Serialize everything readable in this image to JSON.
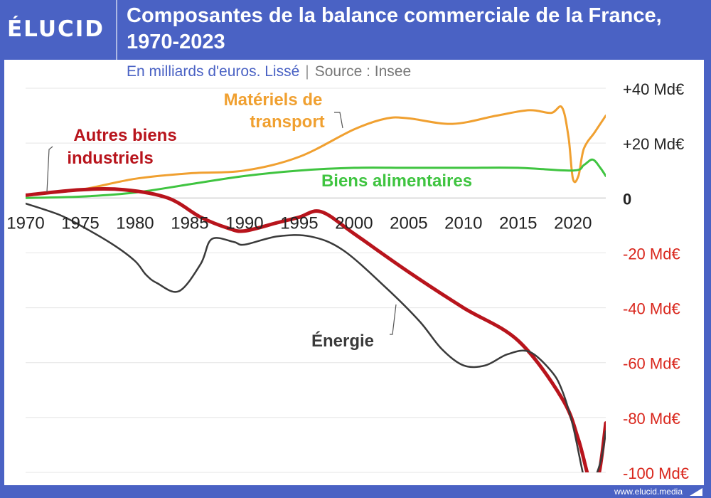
{
  "header": {
    "logo_text": "ÉLUCID",
    "title": "Composantes de la balance commerciale de la France, 1970-2023",
    "subtitle": "En milliards d'euros. Lissé",
    "subtitle_separator": "|",
    "source": "Source : Insee"
  },
  "footer": {
    "url": "www.elucid.media"
  },
  "chart_data": {
    "type": "line",
    "title": "Composantes de la balance commerciale de la France, 1970-2023",
    "subtitle": "En milliards d'euros. Lissé | Source : Insee",
    "xlabel": "",
    "ylabel": "",
    "xlim": [
      1970,
      2023
    ],
    "ylim": [
      -100,
      40
    ],
    "x_ticks": [
      1970,
      1975,
      1980,
      1985,
      1990,
      1995,
      2000,
      2005,
      2010,
      2015,
      2020
    ],
    "y_ticks": [
      {
        "value": 40,
        "label": "+40 Md€",
        "color": "#222222"
      },
      {
        "value": 20,
        "label": "+20 Md€",
        "color": "#222222"
      },
      {
        "value": 0,
        "label": "0",
        "color": "#222222"
      },
      {
        "value": -20,
        "label": "-20 Md€",
        "color": "#d9261c"
      },
      {
        "value": -40,
        "label": "-40 Md€",
        "color": "#d9261c"
      },
      {
        "value": -60,
        "label": "-60 Md€",
        "color": "#d9261c"
      },
      {
        "value": -80,
        "label": "-80 Md€",
        "color": "#d9261c"
      },
      {
        "value": -100,
        "label": "-100 Md€",
        "color": "#d9261c"
      }
    ],
    "grid": true,
    "legend": "inline labels",
    "series": [
      {
        "name": "Matériels de transport",
        "color": "#f0a030",
        "width": 3,
        "points": [
          [
            1970,
            1
          ],
          [
            1975,
            3
          ],
          [
            1980,
            7
          ],
          [
            1985,
            9
          ],
          [
            1990,
            10
          ],
          [
            1995,
            15
          ],
          [
            2000,
            25
          ],
          [
            2003,
            29
          ],
          [
            2005,
            29
          ],
          [
            2009,
            27
          ],
          [
            2013,
            30
          ],
          [
            2016,
            32
          ],
          [
            2018,
            31
          ],
          [
            2019,
            33
          ],
          [
            2019.6,
            22
          ],
          [
            2020,
            7
          ],
          [
            2020.5,
            8
          ],
          [
            2021,
            18
          ],
          [
            2022,
            24
          ],
          [
            2023,
            30
          ]
        ]
      },
      {
        "name": "Biens alimentaires",
        "color": "#3fc440",
        "width": 3,
        "points": [
          [
            1970,
            0
          ],
          [
            1975,
            0.5
          ],
          [
            1980,
            2
          ],
          [
            1985,
            5
          ],
          [
            1990,
            8
          ],
          [
            1995,
            10
          ],
          [
            2000,
            11
          ],
          [
            2005,
            11
          ],
          [
            2010,
            11
          ],
          [
            2015,
            11
          ],
          [
            2020,
            10
          ],
          [
            2021,
            12
          ],
          [
            2021.8,
            14
          ],
          [
            2022.5,
            11
          ],
          [
            2023,
            8
          ]
        ]
      },
      {
        "name": "Autres biens industriels",
        "color": "#b8141c",
        "width": 5,
        "points": [
          [
            1970,
            1
          ],
          [
            1975,
            3
          ],
          [
            1979,
            3
          ],
          [
            1983,
            0
          ],
          [
            1986,
            -7
          ],
          [
            1988.5,
            -11
          ],
          [
            1990,
            -12
          ],
          [
            1993,
            -9
          ],
          [
            1995,
            -7
          ],
          [
            1997,
            -5
          ],
          [
            2000,
            -13
          ],
          [
            2005,
            -27
          ],
          [
            2010,
            -40
          ],
          [
            2015,
            -52
          ],
          [
            2019,
            -73
          ],
          [
            2020.5,
            -88
          ],
          [
            2021.7,
            -105
          ],
          [
            2022.4,
            -100
          ],
          [
            2023,
            -82
          ]
        ]
      },
      {
        "name": "Énergie",
        "color": "#3a3a3a",
        "width": 2.5,
        "points": [
          [
            1970,
            -2
          ],
          [
            1973,
            -6
          ],
          [
            1975,
            -10
          ],
          [
            1978,
            -17
          ],
          [
            1980,
            -23
          ],
          [
            1981,
            -28
          ],
          [
            1982,
            -31
          ],
          [
            1984,
            -34
          ],
          [
            1986,
            -24
          ],
          [
            1987,
            -15
          ],
          [
            1989,
            -16
          ],
          [
            1990,
            -17
          ],
          [
            1993,
            -14
          ],
          [
            1996,
            -14
          ],
          [
            1999,
            -19
          ],
          [
            2003,
            -33
          ],
          [
            2006,
            -45
          ],
          [
            2008,
            -55
          ],
          [
            2010,
            -61
          ],
          [
            2012,
            -61
          ],
          [
            2014,
            -57
          ],
          [
            2016,
            -56
          ],
          [
            2018,
            -63
          ],
          [
            2019,
            -70
          ],
          [
            2020,
            -83
          ],
          [
            2021.2,
            -105
          ],
          [
            2021.8,
            -104
          ],
          [
            2022.6,
            -95
          ],
          [
            2023,
            -85
          ]
        ]
      }
    ],
    "annotations": [
      {
        "text": "Matériels de",
        "series": "Matériels de transport",
        "color": "#f0a030"
      },
      {
        "text": "transport",
        "series": "Matériels de transport",
        "color": "#f0a030"
      },
      {
        "text": "Biens alimentaires",
        "series": "Biens alimentaires",
        "color": "#3fc440"
      },
      {
        "text": "Autres biens",
        "series": "Autres biens industriels",
        "color": "#b8141c"
      },
      {
        "text": "industriels",
        "series": "Autres biens industriels",
        "color": "#b8141c"
      },
      {
        "text": "Énergie",
        "series": "Énergie",
        "color": "#3a3a3a"
      }
    ]
  }
}
